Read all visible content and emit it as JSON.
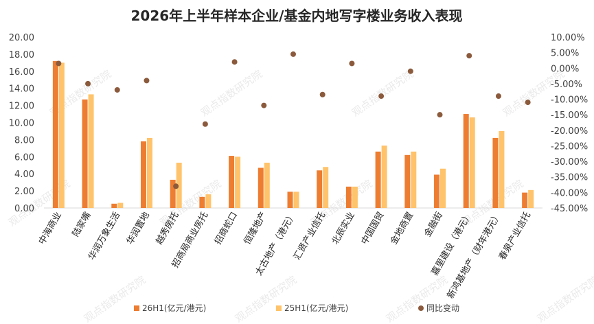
{
  "chart_data": {
    "type": "bar",
    "title": "2026年上半年样本企业/基金内地写字楼业务收入表现",
    "categories": [
      "中海商业",
      "陆家嘴",
      "华润万象生活",
      "华润置地",
      "越秀房托",
      "招商局商业房托",
      "招商蛇口",
      "恒隆地产",
      "太古地产（港元）",
      "汇贤产业信托",
      "北辰实业",
      "中国国贸",
      "金地商置",
      "金融街",
      "嘉里建设（港元）",
      "新鸿基地产（财年港元）",
      "春泉产业信托"
    ],
    "series": [
      {
        "name": "26H1(亿元/港元)",
        "axis": "left",
        "type": "bar",
        "color": "#ED7D31",
        "values": [
          17.2,
          12.7,
          0.5,
          7.8,
          3.3,
          1.3,
          6.1,
          4.7,
          1.9,
          4.4,
          2.5,
          6.6,
          6.2,
          3.9,
          11.0,
          8.2,
          1.8
        ]
      },
      {
        "name": "25H1(亿元/港元)",
        "axis": "left",
        "type": "bar",
        "color": "#FFC36B",
        "values": [
          17.0,
          13.3,
          0.6,
          8.2,
          5.3,
          1.6,
          6.0,
          5.3,
          1.9,
          4.8,
          2.5,
          7.3,
          6.6,
          4.6,
          10.6,
          9.0,
          2.1
        ]
      },
      {
        "name": "同比变动",
        "axis": "right",
        "type": "scatter",
        "color": "#8B5A3C",
        "values": [
          1.5,
          -5.0,
          -7.0,
          -4.0,
          -38.0,
          -18.0,
          2.0,
          -12.0,
          4.5,
          -8.5,
          1.5,
          -9.0,
          -1.0,
          -15.0,
          4.0,
          -9.0,
          -11.0
        ]
      }
    ],
    "y_left": {
      "min": 0,
      "max": 20,
      "step": 2,
      "ticks": [
        "0.00",
        "2.00",
        "4.00",
        "6.00",
        "8.00",
        "10.00",
        "12.00",
        "14.00",
        "16.00",
        "18.00",
        "20.00"
      ]
    },
    "y_right": {
      "min": -45,
      "max": 10,
      "step": 5,
      "ticks": [
        "-45.00%",
        "-40.00%",
        "-35.00%",
        "-30.00%",
        "-25.00%",
        "-20.00%",
        "-15.00%",
        "-10.00%",
        "-5.00%",
        "0.00%",
        "5.00%",
        "10.00%"
      ]
    },
    "grid": false,
    "legend_position": "bottom",
    "watermark": "观点指数研究院"
  }
}
